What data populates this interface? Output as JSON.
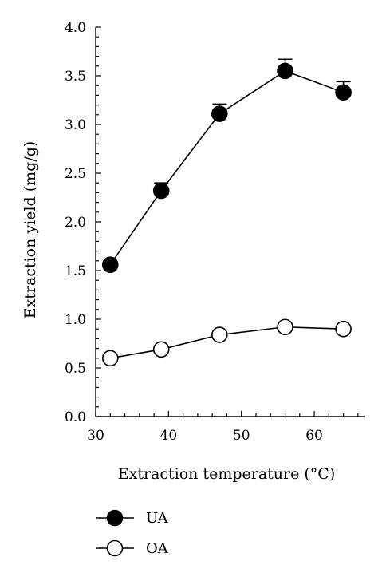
{
  "chart_data": {
    "type": "line",
    "xlabel": "Extraction temperature (°C)",
    "ylabel": "Extraction yield (mg/g)",
    "xlim": [
      30,
      67
    ],
    "ylim": [
      0.0,
      4.0
    ],
    "xticks": [
      "30",
      "40",
      "50",
      "60"
    ],
    "yticks": [
      "0.0",
      "0.5",
      "1.0",
      "1.5",
      "2.0",
      "2.5",
      "3.0",
      "3.5",
      "4.0"
    ],
    "x": [
      32,
      39,
      47,
      56,
      64
    ],
    "series": [
      {
        "name": "UA",
        "marker": "filled-circle",
        "values": [
          1.56,
          2.32,
          3.11,
          3.55,
          3.33
        ],
        "errors": [
          0.0,
          0.08,
          0.1,
          0.12,
          0.11
        ]
      },
      {
        "name": "OA",
        "marker": "open-circle",
        "values": [
          0.6,
          0.69,
          0.84,
          0.92,
          0.9
        ],
        "errors": [
          0.0,
          0.0,
          0.0,
          0.0,
          0.0
        ]
      }
    ],
    "legend_position": "bottom-left",
    "grid": false
  }
}
